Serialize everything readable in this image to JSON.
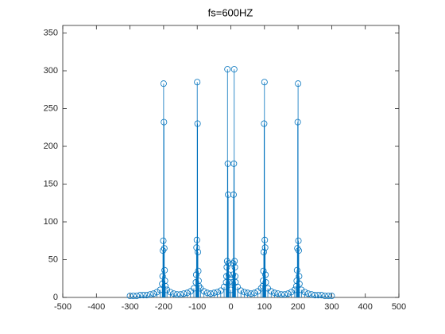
{
  "chart_data": {
    "type": "stem",
    "title": "fs=600HZ",
    "x": [
      -300,
      -290,
      -280,
      -270,
      -260,
      -250,
      -240,
      -230,
      -220,
      -210,
      -204,
      -203,
      -202,
      -201,
      -200,
      -199,
      -198,
      -197,
      -196,
      -195,
      -190,
      -180,
      -170,
      -160,
      -150,
      -140,
      -130,
      -120,
      -110,
      -104,
      -103,
      -102,
      -101,
      -100,
      -99,
      -98,
      -97,
      -96,
      -95,
      -90,
      -80,
      -70,
      -60,
      -50,
      -40,
      -30,
      -20,
      -14,
      -13,
      -12,
      -11,
      -10,
      -9,
      -8,
      -7,
      -6,
      -5,
      0,
      5,
      6,
      7,
      8,
      9,
      10,
      11,
      12,
      13,
      14,
      20,
      30,
      40,
      50,
      60,
      70,
      80,
      90,
      95,
      96,
      97,
      98,
      99,
      100,
      101,
      102,
      103,
      104,
      110,
      120,
      130,
      140,
      150,
      160,
      170,
      180,
      190,
      195,
      196,
      197,
      198,
      199,
      200,
      201,
      202,
      203,
      204,
      210,
      220,
      230,
      240,
      250,
      260,
      270,
      280,
      290,
      300
    ],
    "series": [
      {
        "color": "#0072bd",
        "values": [
          2,
          2,
          2,
          3,
          3,
          3,
          4,
          5,
          7,
          10,
          18,
          28,
          62,
          75,
          283,
          232,
          65,
          36,
          22,
          15,
          10,
          7,
          5,
          4,
          4,
          5,
          6,
          8,
          12,
          20,
          30,
          66,
          76,
          285,
          230,
          60,
          35,
          22,
          15,
          12,
          8,
          6,
          5,
          6,
          7,
          9,
          14,
          20,
          28,
          40,
          48,
          302,
          177,
          136,
          45,
          30,
          20,
          10,
          20,
          30,
          45,
          136,
          177,
          302,
          48,
          40,
          28,
          20,
          14,
          9,
          7,
          6,
          5,
          6,
          8,
          12,
          15,
          22,
          35,
          60,
          230,
          285,
          76,
          66,
          30,
          20,
          12,
          8,
          6,
          5,
          4,
          4,
          5,
          7,
          10,
          15,
          22,
          36,
          65,
          232,
          283,
          75,
          62,
          28,
          18,
          10,
          7,
          5,
          4,
          3,
          3,
          3,
          2,
          2,
          2
        ]
      }
    ],
    "xlim": [
      -500,
      500
    ],
    "xticks": [
      -500,
      -400,
      -300,
      -200,
      -100,
      0,
      100,
      200,
      300,
      400,
      500
    ],
    "ylim": [
      0,
      360
    ],
    "yticks": [
      0,
      50,
      100,
      150,
      200,
      250,
      300,
      350
    ]
  }
}
